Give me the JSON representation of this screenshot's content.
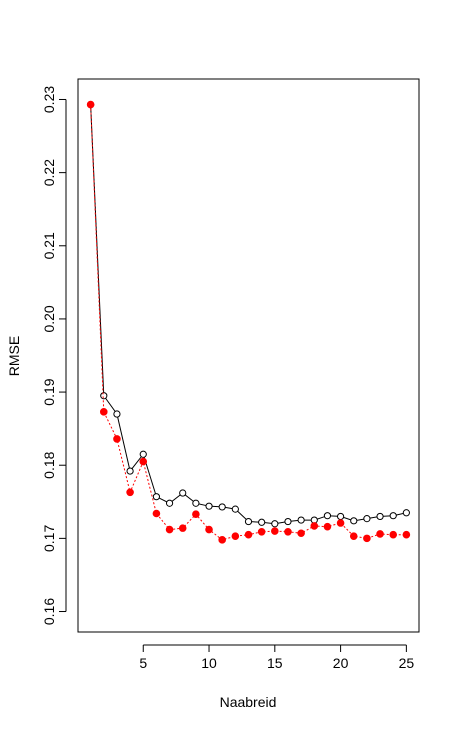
{
  "chart_data": {
    "type": "line",
    "title": "",
    "xlabel": "Naabreid",
    "ylabel": "RMSE",
    "xlim": [
      1,
      25
    ],
    "ylim": [
      0.16,
      0.23
    ],
    "x_ticks": [
      5,
      10,
      15,
      20,
      25
    ],
    "y_ticks": [
      0.16,
      0.17,
      0.18,
      0.19,
      0.2,
      0.21,
      0.22,
      0.23
    ],
    "x_tick_labels": [
      "5",
      "10",
      "15",
      "20",
      "25"
    ],
    "y_tick_labels": [
      "0.16",
      "0.17",
      "0.18",
      "0.19",
      "0.20",
      "0.21",
      "0.22",
      "0.23"
    ],
    "grid": false,
    "legend": "none",
    "x": [
      1,
      2,
      3,
      4,
      5,
      6,
      7,
      8,
      9,
      10,
      11,
      12,
      13,
      14,
      15,
      16,
      17,
      18,
      19,
      20,
      21,
      22,
      23,
      24,
      25
    ],
    "series": [
      {
        "color": "#000000",
        "line_style": "solid",
        "marker": "open-circle",
        "values": [
          0.2293,
          0.1895,
          0.187,
          0.1792,
          0.1815,
          0.1757,
          0.1748,
          0.1762,
          0.1748,
          0.1744,
          0.1743,
          0.174,
          0.1723,
          0.1722,
          0.172,
          0.1723,
          0.1725,
          0.1725,
          0.1731,
          0.173,
          0.1724,
          0.1727,
          0.173,
          0.1731,
          0.1735
        ]
      },
      {
        "color": "#ff0000",
        "line_style": "dotted",
        "marker": "filled-circle",
        "values": [
          0.2293,
          0.1873,
          0.1836,
          0.1763,
          0.1805,
          0.1734,
          0.1712,
          0.1714,
          0.1733,
          0.1712,
          0.1698,
          0.1703,
          0.1705,
          0.1709,
          0.171,
          0.1709,
          0.1707,
          0.1717,
          0.1716,
          0.1721,
          0.1703,
          0.17,
          0.1706,
          0.1705,
          0.1705
        ]
      }
    ]
  }
}
